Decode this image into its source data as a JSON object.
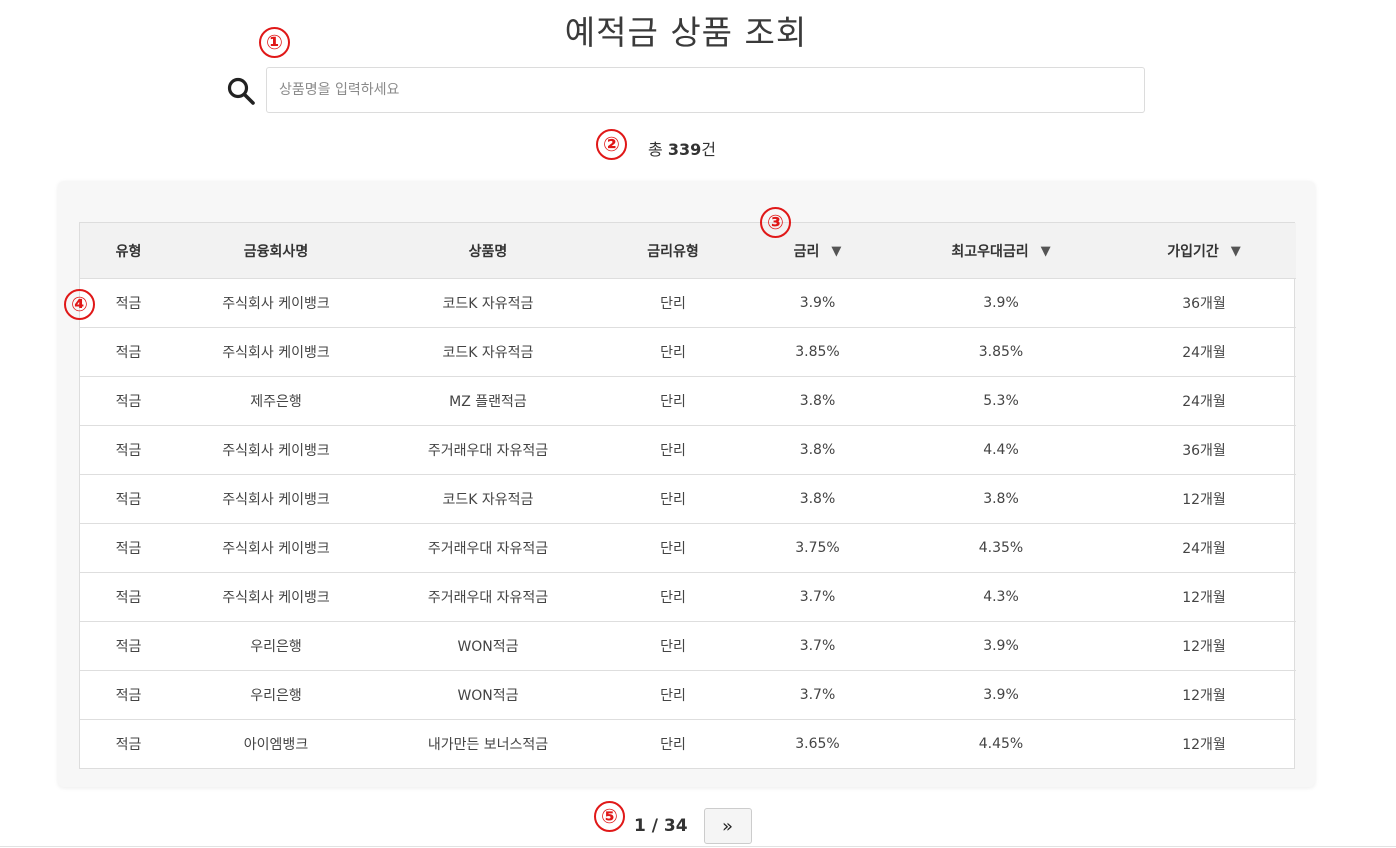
{
  "page": {
    "title": "예적금 상품 조회",
    "search": {
      "placeholder": "상품명을 입력하세요",
      "value": ""
    },
    "total": {
      "prefix": "총",
      "count": "339",
      "suffix": "건"
    }
  },
  "annotations": [
    "①",
    "②",
    "③",
    "④",
    "⑤"
  ],
  "table": {
    "columns": [
      {
        "label": "유형",
        "sortable": false
      },
      {
        "label": "금융회사명",
        "sortable": false
      },
      {
        "label": "상품명",
        "sortable": false
      },
      {
        "label": "금리유형",
        "sortable": false
      },
      {
        "label": "금리",
        "sortable": true
      },
      {
        "label": "최고우대금리",
        "sortable": true
      },
      {
        "label": "가입기간",
        "sortable": true
      }
    ],
    "sort_icon": "triangle-down-icon",
    "rows": [
      [
        "적금",
        "주식회사 케이뱅크",
        "코드K 자유적금",
        "단리",
        "3.9%",
        "3.9%",
        "36개월"
      ],
      [
        "적금",
        "주식회사 케이뱅크",
        "코드K 자유적금",
        "단리",
        "3.85%",
        "3.85%",
        "24개월"
      ],
      [
        "적금",
        "제주은행",
        "MZ 플랜적금",
        "단리",
        "3.8%",
        "5.3%",
        "24개월"
      ],
      [
        "적금",
        "주식회사 케이뱅크",
        "주거래우대 자유적금",
        "단리",
        "3.8%",
        "4.4%",
        "36개월"
      ],
      [
        "적금",
        "주식회사 케이뱅크",
        "코드K 자유적금",
        "단리",
        "3.8%",
        "3.8%",
        "12개월"
      ],
      [
        "적금",
        "주식회사 케이뱅크",
        "주거래우대 자유적금",
        "단리",
        "3.75%",
        "4.35%",
        "24개월"
      ],
      [
        "적금",
        "주식회사 케이뱅크",
        "주거래우대 자유적금",
        "단리",
        "3.7%",
        "4.3%",
        "12개월"
      ],
      [
        "적금",
        "우리은행",
        "WON적금",
        "단리",
        "3.7%",
        "3.9%",
        "12개월"
      ],
      [
        "적금",
        "우리은행",
        "WON적금",
        "단리",
        "3.7%",
        "3.9%",
        "12개월"
      ],
      [
        "적금",
        "아이엠뱅크",
        "내가만든 보너스적금",
        "단리",
        "3.65%",
        "4.45%",
        "12개월"
      ]
    ]
  },
  "pagination": {
    "indicator": "1 / 34",
    "next_label": "»"
  },
  "colors": {
    "annotation": "#e01818",
    "header_bg": "#f2f2f2",
    "card_bg": "#f7f7f7"
  }
}
